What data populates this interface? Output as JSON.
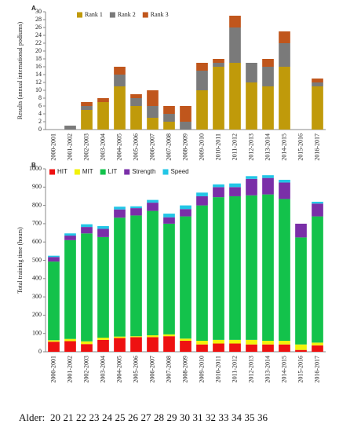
{
  "chart_data": [
    {
      "type": "stacked-bar",
      "panel": "A",
      "ylabel": "Results (annual international podiums)",
      "categories": [
        "2000-2001",
        "2001-2002",
        "2002-2003",
        "2003-2004",
        "2004-2005",
        "2005-2006",
        "2006-2007",
        "2007-2008",
        "2008-2009",
        "2009-2010",
        "2010-2011",
        "2011-2012",
        "2012-2013",
        "2013-2014",
        "2014-2015",
        "2015-2016",
        "2016-2017"
      ],
      "series": [
        {
          "name": "Rank 1",
          "color": "#c09a0a",
          "values": [
            0,
            0,
            5,
            7,
            11,
            6,
            3,
            2,
            0,
            10,
            16,
            17,
            12,
            11,
            16,
            0,
            11
          ]
        },
        {
          "name": "Rank 2",
          "color": "#7a7a7a",
          "values": [
            0,
            1,
            1,
            0,
            3,
            2,
            3,
            2,
            2,
            5,
            1,
            9,
            5,
            5,
            6,
            0,
            1
          ]
        },
        {
          "name": "Rank 3",
          "color": "#c0561c",
          "values": [
            0,
            0,
            1,
            1,
            2,
            1,
            4,
            2,
            4,
            2,
            1,
            3,
            0,
            2,
            3,
            0,
            1
          ]
        }
      ],
      "ylim": [
        0,
        30
      ],
      "yticks": [
        0,
        2,
        4,
        6,
        8,
        10,
        12,
        14,
        16,
        18,
        20,
        22,
        24,
        26,
        28,
        30
      ],
      "legend": "top"
    },
    {
      "type": "stacked-bar",
      "panel": "B",
      "ylabel": "Total training time (hours)",
      "categories": [
        "2000-2001",
        "2001-2002",
        "2002-2003",
        "2003-2004",
        "2004-2005",
        "2005-2006",
        "2006-2007",
        "2007-2008",
        "2008-2009",
        "2009-2010",
        "2010-2011",
        "2011-2012",
        "2012-2013",
        "2013-2014",
        "2014-2015",
        "2015-2016",
        "2016-2017"
      ],
      "series": [
        {
          "name": "HIT",
          "color": "#ee1111",
          "values": [
            55,
            58,
            42,
            65,
            75,
            80,
            80,
            85,
            60,
            40,
            45,
            45,
            40,
            40,
            40,
            10,
            35
          ]
        },
        {
          "name": "MIT",
          "color": "#f2f20a",
          "values": [
            8,
            12,
            15,
            12,
            8,
            5,
            10,
            10,
            12,
            20,
            20,
            20,
            25,
            20,
            20,
            30,
            15
          ]
        },
        {
          "name": "LIT",
          "color": "#13c24b",
          "values": [
            430,
            540,
            590,
            550,
            650,
            660,
            680,
            605,
            668,
            740,
            780,
            785,
            790,
            800,
            775,
            585,
            690
          ]
        },
        {
          "name": "Strength",
          "color": "#7a2fa8",
          "values": [
            25,
            25,
            35,
            45,
            45,
            40,
            45,
            35,
            40,
            50,
            55,
            50,
            90,
            90,
            90,
            75,
            70
          ]
        },
        {
          "name": "Speed",
          "color": "#22c6e6",
          "values": [
            7,
            12,
            15,
            15,
            15,
            10,
            15,
            20,
            20,
            20,
            15,
            20,
            15,
            15,
            15,
            0,
            10
          ]
        }
      ],
      "ylim": [
        0,
        1000
      ],
      "yticks": [
        0,
        100,
        200,
        300,
        400,
        500,
        600,
        700,
        800,
        900,
        1000
      ],
      "legend": "top-left"
    }
  ],
  "caption": {
    "label": "Alder:",
    "ages": [
      20,
      21,
      22,
      23,
      24,
      25,
      26,
      27,
      28,
      29,
      30,
      31,
      32,
      33,
      34,
      35,
      36
    ]
  }
}
